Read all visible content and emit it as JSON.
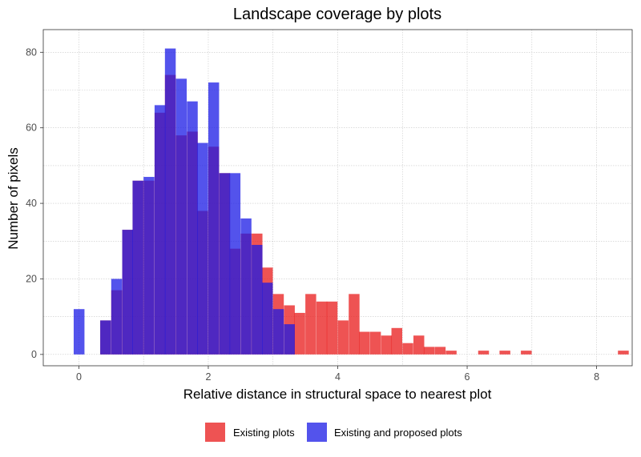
{
  "chart_data": {
    "type": "histogram",
    "title": "Landscape coverage by plots",
    "xlabel": "Relative distance in structural space to nearest plot",
    "ylabel": "Number of pixels",
    "xlim": [
      -0.55,
      8.55
    ],
    "ylim": [
      -3,
      86
    ],
    "x_ticks": [
      0,
      2,
      4,
      6,
      8
    ],
    "y_ticks": [
      0,
      20,
      40,
      60,
      80
    ],
    "grid": true,
    "legend_position": "bottom",
    "bin_width": 0.1667,
    "series": [
      {
        "name": "Existing plots",
        "color": "#e8191a",
        "opacity": 0.75,
        "bins": [
          {
            "x0": 0.33,
            "value": 9
          },
          {
            "x0": 0.5,
            "value": 17
          },
          {
            "x0": 0.67,
            "value": 33
          },
          {
            "x0": 0.83,
            "value": 46
          },
          {
            "x0": 1.0,
            "value": 46
          },
          {
            "x0": 1.17,
            "value": 64
          },
          {
            "x0": 1.33,
            "value": 74
          },
          {
            "x0": 1.5,
            "value": 58
          },
          {
            "x0": 1.67,
            "value": 59
          },
          {
            "x0": 1.83,
            "value": 38
          },
          {
            "x0": 2.0,
            "value": 55
          },
          {
            "x0": 2.17,
            "value": 48
          },
          {
            "x0": 2.33,
            "value": 28
          },
          {
            "x0": 2.5,
            "value": 32
          },
          {
            "x0": 2.67,
            "value": 32
          },
          {
            "x0": 2.83,
            "value": 23
          },
          {
            "x0": 3.0,
            "value": 16
          },
          {
            "x0": 3.17,
            "value": 13
          },
          {
            "x0": 3.33,
            "value": 11
          },
          {
            "x0": 3.5,
            "value": 16
          },
          {
            "x0": 3.67,
            "value": 14
          },
          {
            "x0": 3.83,
            "value": 14
          },
          {
            "x0": 4.0,
            "value": 9
          },
          {
            "x0": 4.17,
            "value": 16
          },
          {
            "x0": 4.33,
            "value": 6
          },
          {
            "x0": 4.5,
            "value": 6
          },
          {
            "x0": 4.67,
            "value": 5
          },
          {
            "x0": 4.83,
            "value": 7
          },
          {
            "x0": 5.0,
            "value": 3
          },
          {
            "x0": 5.17,
            "value": 5
          },
          {
            "x0": 5.33,
            "value": 2
          },
          {
            "x0": 5.5,
            "value": 2
          },
          {
            "x0": 5.67,
            "value": 1
          },
          {
            "x0": 6.17,
            "value": 1
          },
          {
            "x0": 6.5,
            "value": 1
          },
          {
            "x0": 6.83,
            "value": 1
          },
          {
            "x0": 8.33,
            "value": 1
          }
        ]
      },
      {
        "name": "Existing and proposed plots",
        "color": "#1a1ae6",
        "opacity": 0.75,
        "bins": [
          {
            "x0": -0.08,
            "value": 12
          },
          {
            "x0": 0.33,
            "value": 9
          },
          {
            "x0": 0.5,
            "value": 20
          },
          {
            "x0": 0.67,
            "value": 33
          },
          {
            "x0": 0.83,
            "value": 46
          },
          {
            "x0": 1.0,
            "value": 47
          },
          {
            "x0": 1.17,
            "value": 66
          },
          {
            "x0": 1.33,
            "value": 81
          },
          {
            "x0": 1.5,
            "value": 73
          },
          {
            "x0": 1.67,
            "value": 67
          },
          {
            "x0": 1.83,
            "value": 56
          },
          {
            "x0": 2.0,
            "value": 72
          },
          {
            "x0": 2.17,
            "value": 48
          },
          {
            "x0": 2.33,
            "value": 48
          },
          {
            "x0": 2.5,
            "value": 36
          },
          {
            "x0": 2.67,
            "value": 29
          },
          {
            "x0": 2.83,
            "value": 19
          },
          {
            "x0": 3.0,
            "value": 12
          },
          {
            "x0": 3.17,
            "value": 8
          }
        ]
      }
    ]
  }
}
